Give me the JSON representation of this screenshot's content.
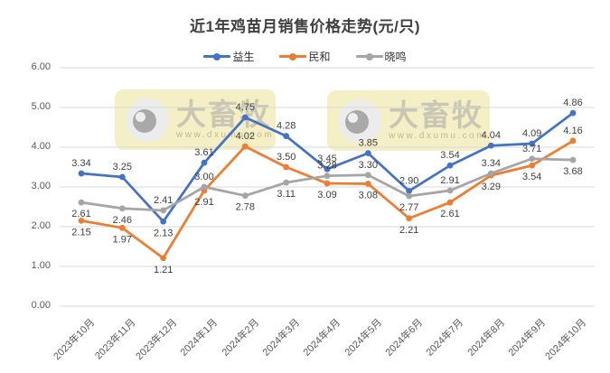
{
  "title": "近1年鸡苗月销售价格走势(元/只)",
  "watermark": {
    "brand": "大畜牧",
    "url": "www.dxumu.com"
  },
  "colors": {
    "grid": "#d9d9d9",
    "axis_text": "#595959",
    "data_label": "#404040",
    "title_text": "#404040",
    "watermark_bg": "#f4efc5",
    "watermark_text": "#bdbdbd",
    "series_blue": "#4472C4",
    "series_orange": "#ED7D31",
    "series_gray": "#A5A5A5"
  },
  "chart_data": {
    "type": "line",
    "title": "近1年鸡苗月销售价格走势(元/只)",
    "xlabel": "",
    "ylabel": "",
    "ylim": [
      0,
      6
    ],
    "y_ticks": [
      "0.00",
      "1.00",
      "2.00",
      "3.00",
      "4.00",
      "5.00",
      "6.00"
    ],
    "grid": true,
    "legend_position": "top",
    "categories": [
      "2023年10月",
      "2023年11月",
      "2023年12月",
      "2024年1月",
      "2024年2月",
      "2024年3月",
      "2024年4月",
      "2024年5月",
      "2024年6月",
      "2024年7月",
      "2024年8月",
      "2024年9月",
      "2024年10月"
    ],
    "series": [
      {
        "name": "益生",
        "color": "#4472C4",
        "values": [
          3.34,
          3.25,
          2.13,
          3.61,
          4.75,
          4.28,
          3.45,
          3.85,
          2.9,
          3.54,
          4.04,
          4.09,
          4.86
        ],
        "point_labels": [
          "3.34",
          "3.25",
          "2.13",
          "3.61",
          "4.75",
          "4.28",
          "3.45",
          "3.85",
          "2.90",
          "3.54",
          "4.04",
          "4.09",
          "4.86"
        ],
        "label_pos": [
          "above",
          "above",
          "below",
          "above",
          "above",
          "above",
          "above",
          "above",
          "above",
          "above",
          "above",
          "above",
          "above"
        ]
      },
      {
        "name": "民和",
        "color": "#ED7D31",
        "values": [
          2.15,
          1.97,
          1.21,
          2.91,
          4.02,
          3.5,
          3.09,
          3.08,
          2.21,
          2.61,
          3.29,
          3.54,
          4.16
        ],
        "point_labels": [
          "2.15",
          "1.97",
          "1.21",
          "2.91",
          "4.02",
          "3.50",
          "3.09",
          "3.08",
          "2.21",
          "2.61",
          "3.29",
          "3.54",
          "4.16"
        ],
        "label_pos": [
          "below",
          "below",
          "below",
          "below",
          "above",
          "above",
          "below",
          "below",
          "below",
          "below",
          "below",
          "below",
          "above"
        ]
      },
      {
        "name": "晓鸣",
        "color": "#A5A5A5",
        "values": [
          2.61,
          2.46,
          2.41,
          3.0,
          2.78,
          3.11,
          3.28,
          3.3,
          2.77,
          2.91,
          3.34,
          3.71,
          3.68
        ],
        "point_labels": [
          "2.61",
          "2.46",
          "2.41",
          "3.00",
          "2.78",
          "3.11",
          "3.28",
          "3.30",
          "2.77",
          "2.91",
          "3.34",
          "3.71",
          "3.68"
        ],
        "label_pos": [
          "below",
          "below",
          "above",
          "above",
          "below",
          "below",
          "above",
          "above",
          "below",
          "above",
          "above",
          "above",
          "below"
        ]
      }
    ]
  }
}
